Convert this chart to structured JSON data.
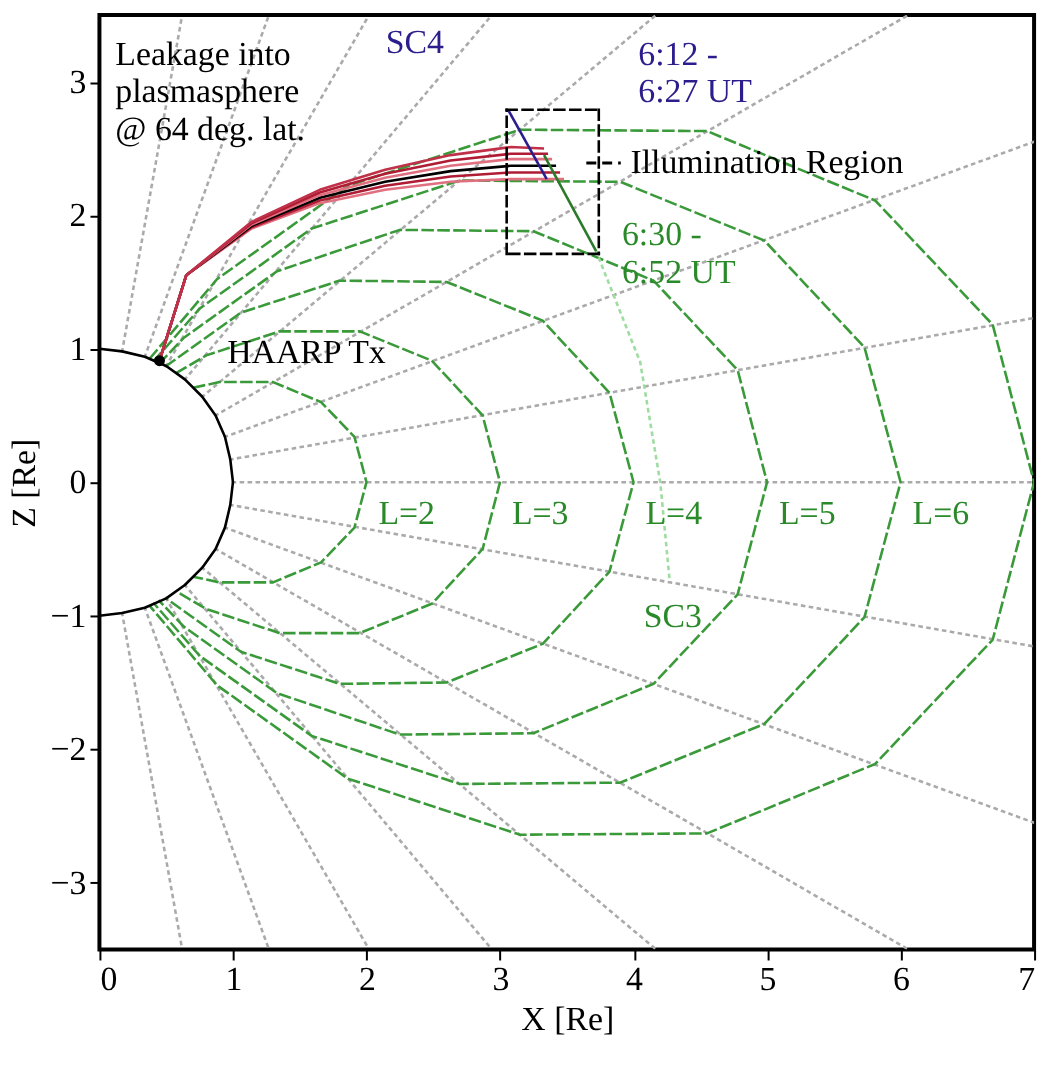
{
  "chart_data": {
    "type": "line",
    "xlabel": "X [Re]",
    "ylabel": "Z [Re]",
    "xlim": [
      0,
      7
    ],
    "ylim": [
      -3.5,
      3.5
    ],
    "xticks": [
      0,
      1,
      2,
      3,
      4,
      5,
      6,
      7
    ],
    "yticks": [
      -3,
      -2,
      -1,
      0,
      1,
      2,
      3
    ],
    "grid": false,
    "legend": "top right",
    "marker": "none",
    "series": [
      {
        "color": "#aaaaaa",
        "line_style": "dotted",
        "x": [
          1,
          7
        ],
        "values": [
          0,
          0
        ]
      },
      {
        "color": "#aaaaaa",
        "line_style": "dotted",
        "x": [
          0.98,
          7
        ],
        "values": [
          0.17,
          1.23
        ]
      },
      {
        "color": "#aaaaaa",
        "line_style": "dotted",
        "x": [
          0.98,
          7
        ],
        "values": [
          -0.17,
          -1.23
        ]
      },
      {
        "color": "#aaaaaa",
        "line_style": "dotted",
        "x": [
          0.94,
          7
        ],
        "values": [
          0.34,
          2.55
        ]
      },
      {
        "color": "#aaaaaa",
        "line_style": "dotted",
        "x": [
          0.94,
          7
        ],
        "values": [
          -0.34,
          -2.55
        ]
      },
      {
        "color": "#aaaaaa",
        "line_style": "dotted",
        "x": [
          0.87,
          6.06
        ],
        "values": [
          0.5,
          3.5
        ]
      },
      {
        "color": "#aaaaaa",
        "line_style": "dotted",
        "x": [
          0.87,
          6.06
        ],
        "values": [
          -0.5,
          -3.5
        ]
      },
      {
        "color": "#aaaaaa",
        "line_style": "dotted",
        "x": [
          0.77,
          4.17
        ],
        "values": [
          0.64,
          3.5
        ]
      },
      {
        "color": "#aaaaaa",
        "line_style": "dotted",
        "x": [
          0.77,
          4.17
        ],
        "values": [
          -0.64,
          -3.5
        ]
      },
      {
        "color": "#aaaaaa",
        "line_style": "dotted",
        "x": [
          0.64,
          2.94
        ],
        "values": [
          0.77,
          3.5
        ]
      },
      {
        "color": "#aaaaaa",
        "line_style": "dotted",
        "x": [
          0.64,
          2.94
        ],
        "values": [
          -0.77,
          -3.5
        ]
      },
      {
        "color": "#aaaaaa",
        "line_style": "dotted",
        "x": [
          0.5,
          2.02
        ],
        "values": [
          0.87,
          3.5
        ]
      },
      {
        "color": "#aaaaaa",
        "line_style": "dotted",
        "x": [
          0.5,
          2.02
        ],
        "values": [
          -0.87,
          -3.5
        ]
      },
      {
        "color": "#aaaaaa",
        "line_style": "dotted",
        "x": [
          0.34,
          1.27
        ],
        "values": [
          0.94,
          3.5
        ]
      },
      {
        "color": "#aaaaaa",
        "line_style": "dotted",
        "x": [
          0.34,
          1.27
        ],
        "values": [
          -0.94,
          -3.5
        ]
      },
      {
        "color": "#aaaaaa",
        "line_style": "dotted",
        "x": [
          0.17,
          0.62
        ],
        "values": [
          0.98,
          3.5
        ]
      },
      {
        "color": "#aaaaaa",
        "line_style": "dotted",
        "x": [
          0.17,
          0.62
        ],
        "values": [
          -0.98,
          -3.5
        ]
      },
      {
        "color": "#3a9a3a",
        "line_style": "dashed",
        "x": [
          0.71,
          0.9,
          1.3,
          1.66,
          1.91,
          2,
          1.91,
          1.66,
          1.3,
          0.9,
          0.71
        ],
        "values": [
          0.71,
          0.75,
          0.75,
          0.6,
          0.34,
          0,
          -0.34,
          -0.6,
          -0.75,
          -0.75,
          -0.71
        ]
      },
      {
        "color": "#3a9a3a",
        "line_style": "dashed",
        "x": [
          0.58,
          0.8,
          1.35,
          1.95,
          2.49,
          2.87,
          3,
          2.87,
          2.49,
          1.95,
          1.35,
          0.8,
          0.58
        ],
        "values": [
          0.82,
          0.95,
          1.13,
          1.13,
          0.91,
          0.5,
          0,
          -0.5,
          -0.91,
          -1.13,
          -1.13,
          -0.95,
          -0.82
        ]
      },
      {
        "color": "#3a9a3a",
        "line_style": "dashed",
        "x": [
          0.5,
          1.06,
          1.8,
          2.6,
          3.32,
          3.82,
          4,
          3.82,
          3.32,
          2.6,
          1.8,
          1.06,
          0.5
        ],
        "values": [
          0.87,
          1.27,
          1.51,
          1.5,
          1.21,
          0.67,
          0,
          -0.67,
          -1.21,
          -1.5,
          -1.51,
          -1.27,
          -0.87
        ]
      },
      {
        "color": "#3a9a3a",
        "line_style": "dashed",
        "x": [
          0.45,
          0.63,
          1.33,
          2.25,
          3.25,
          4.15,
          4.78,
          5,
          4.78,
          4.15,
          3.25,
          2.25,
          1.33,
          0.63,
          0.45
        ],
        "values": [
          0.89,
          1.08,
          1.58,
          1.89,
          1.88,
          1.51,
          0.84,
          0,
          -0.84,
          -1.51,
          -1.88,
          -1.89,
          -1.58,
          -1.08,
          -0.89
        ]
      },
      {
        "color": "#3a9a3a",
        "line_style": "dashed",
        "x": [
          0.41,
          0.75,
          1.59,
          2.7,
          3.9,
          4.98,
          5.73,
          6,
          5.73,
          4.98,
          3.9,
          2.7,
          1.59,
          0.75,
          0.41
        ],
        "values": [
          0.91,
          1.3,
          1.9,
          2.26,
          2.25,
          1.81,
          1.01,
          0,
          -1.01,
          -1.81,
          -2.25,
          -2.26,
          -1.9,
          -1.3,
          -0.91
        ]
      },
      {
        "color": "#3a9a3a",
        "line_style": "dashed",
        "x": [
          0.38,
          0.88,
          1.86,
          3.15,
          4.55,
          5.81,
          6.69,
          7,
          6.69,
          5.81,
          4.55,
          3.15,
          1.86,
          0.88,
          0.38
        ],
        "values": [
          0.93,
          1.52,
          2.22,
          2.64,
          2.63,
          2.11,
          1.18,
          0,
          -1.18,
          -2.11,
          -2.63,
          -2.64,
          -2.22,
          -1.52,
          -0.93
        ]
      },
      {
        "color": "#000000",
        "line_style": "solid",
        "x": [
          0,
          0.17,
          0.34,
          0.5,
          0.64,
          0.77,
          0.87,
          0.94,
          0.98,
          1,
          0.98,
          0.94,
          0.87,
          0.77,
          0.64,
          0.5,
          0.34,
          0.17,
          0
        ],
        "values": [
          -1,
          -0.98,
          -0.94,
          -0.87,
          -0.77,
          -0.64,
          -0.5,
          -0.34,
          -0.17,
          0,
          0.17,
          0.34,
          0.5,
          0.64,
          0.77,
          0.87,
          0.94,
          0.98,
          1
        ]
      },
      {
        "color": "#9fdc9f",
        "line_style": "dotted",
        "x": [
          3.72,
          4.05,
          4.2,
          4.27
        ],
        "values": [
          1.73,
          0.9,
          0,
          -0.73
        ]
      },
      {
        "color": "#e07080",
        "line_style": "solid",
        "x": [
          0.45,
          0.65,
          1.14,
          1.65,
          2.14,
          2.63,
          3.08,
          3.48
        ],
        "values": [
          0.91,
          1.55,
          1.9,
          2.09,
          2.19,
          2.25,
          2.27,
          2.27
        ]
      },
      {
        "color": "#b01c34",
        "line_style": "solid",
        "x": [
          0.45,
          0.65,
          1.14,
          1.65,
          2.14,
          2.63,
          3.08,
          3.45
        ],
        "values": [
          0.91,
          1.55,
          1.91,
          2.11,
          2.22,
          2.29,
          2.32,
          2.32
        ]
      },
      {
        "color": "#000000",
        "line_style": "solid",
        "x": [
          0.45,
          0.65,
          1.14,
          1.65,
          2.14,
          2.63,
          3.08,
          3.42
        ],
        "values": [
          0.91,
          1.55,
          1.92,
          2.13,
          2.25,
          2.33,
          2.37,
          2.37
        ]
      },
      {
        "color": "#e07080",
        "line_style": "solid",
        "x": [
          0.45,
          0.65,
          1.14,
          1.65,
          2.14,
          2.63,
          3.08,
          3.39
        ],
        "values": [
          0.91,
          1.55,
          1.93,
          2.15,
          2.28,
          2.37,
          2.42,
          2.42
        ]
      },
      {
        "color": "#b01c34",
        "line_style": "solid",
        "x": [
          0.45,
          0.65,
          1.14,
          1.65,
          2.14,
          2.63,
          3.08,
          3.36
        ],
        "values": [
          0.91,
          1.55,
          1.94,
          2.17,
          2.31,
          2.41,
          2.46,
          2.46
        ]
      },
      {
        "color": "#c03048",
        "line_style": "solid",
        "x": [
          0.45,
          0.65,
          1.14,
          1.65,
          2.14,
          2.63,
          3.08,
          3.33
        ],
        "values": [
          0.91,
          1.55,
          1.95,
          2.19,
          2.34,
          2.45,
          2.51,
          2.5
        ]
      },
      {
        "color": "#2b1d8c",
        "line_style": "solid",
        "x": [
          3.06,
          3.35
        ],
        "values": [
          2.79,
          2.27
        ]
      },
      {
        "color": "#2a7a2a",
        "line_style": "solid",
        "x": [
          3.33,
          3.72
        ],
        "values": [
          2.45,
          1.73
        ]
      },
      {
        "name": "Illumination Region",
        "color": "#000000",
        "line_style": "dashed",
        "x": [
          3.05,
          3.74
        ],
        "values": [
          2.79,
          2.79
        ]
      },
      {
        "color": "#000000",
        "line_style": "dashed",
        "x": [
          3.74,
          3.74
        ],
        "values": [
          2.79,
          1.71
        ]
      },
      {
        "color": "#000000",
        "line_style": "dashed",
        "x": [
          3.74,
          3.05
        ],
        "values": [
          1.71,
          1.71
        ]
      },
      {
        "color": "#000000",
        "line_style": "dashed",
        "x": [
          3.05,
          3.05
        ],
        "values": [
          1.71,
          2.79
        ]
      },
      {
        "type": "scatter",
        "color": "#000000",
        "marker": "circle",
        "x": [
          0.45
        ],
        "values": [
          0.91
        ]
      }
    ],
    "annotations": [
      "SC4",
      "6:12 -\n6:27 UT",
      {
        "text": "6:30 -\n6:52 UT",
        "x": 3.72,
        "y": 1.73
      },
      "Leakage into\nplasmasphere\n@ 64 deg. lat.",
      {
        "text": "HAARP Tx",
        "x": 0.45,
        "y": 0.91
      },
      {
        "text": "L=2",
        "x": 2,
        "y": 0
      },
      {
        "text": "L=3",
        "x": 3,
        "y": 0
      },
      {
        "text": "L=4",
        "x": 4,
        "y": 0
      },
      {
        "text": "L=5",
        "x": 5,
        "y": 0
      },
      {
        "text": "L=6",
        "x": 6,
        "y": 0
      },
      {
        "text": "SC3",
        "x": 4.27,
        "y": -0.73
      }
    ]
  }
}
